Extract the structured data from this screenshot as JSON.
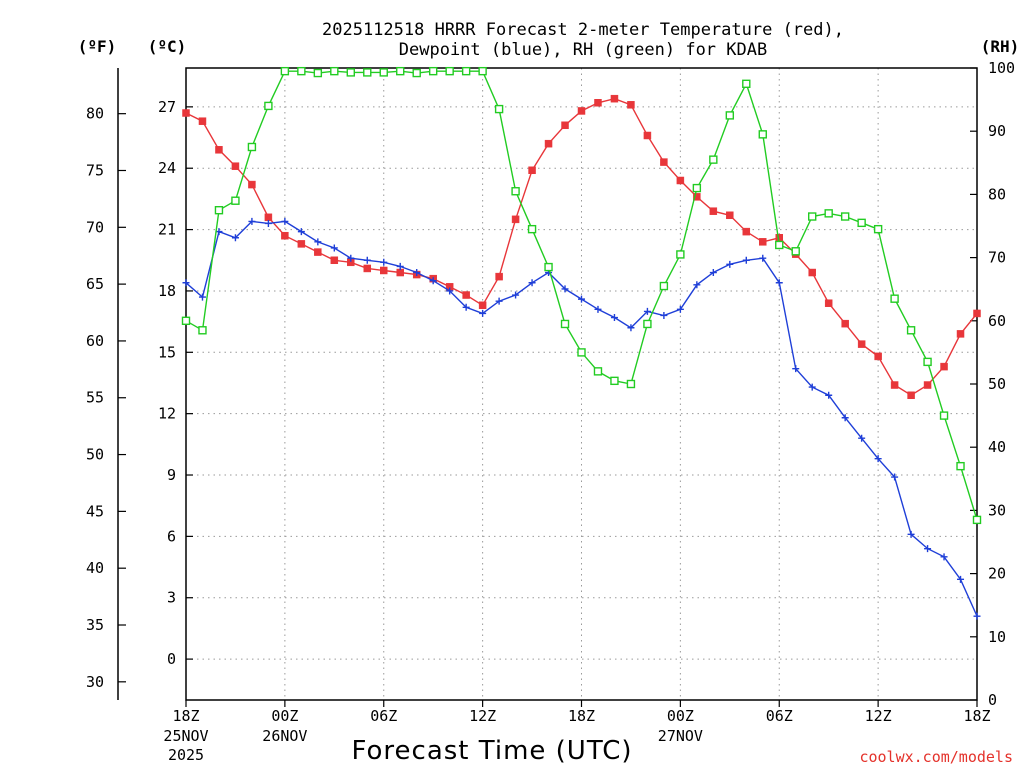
{
  "title": {
    "line1": "2025112518 HRRR Forecast 2-meter Temperature (red),",
    "line2": "Dewpoint (blue), RH (green) for KDAB"
  },
  "axes": {
    "f_unit": "(ºF)",
    "c_unit": "(ºC)",
    "rh_unit": "(RH)",
    "f_ticks": [
      "80",
      "75",
      "70",
      "65",
      "60",
      "55",
      "50",
      "45",
      "40",
      "35",
      "30"
    ],
    "c_ticks": [
      "27",
      "24",
      "21",
      "18",
      "15",
      "12",
      "9",
      "6",
      "3",
      "0"
    ],
    "rh_ticks": [
      "100",
      "90",
      "80",
      "70",
      "60",
      "50",
      "40",
      "30",
      "20",
      "10",
      "0"
    ],
    "x_ticks": [
      {
        "label": "18Z",
        "sub1": "25NOV",
        "sub2": "2025",
        "hour": 0
      },
      {
        "label": "00Z",
        "sub1": "26NOV",
        "sub2": "",
        "hour": 6
      },
      {
        "label": "06Z",
        "sub1": "",
        "sub2": "",
        "hour": 12
      },
      {
        "label": "12Z",
        "sub1": "",
        "sub2": "",
        "hour": 18
      },
      {
        "label": "18Z",
        "sub1": "",
        "sub2": "",
        "hour": 24
      },
      {
        "label": "00Z",
        "sub1": "27NOV",
        "sub2": "",
        "hour": 30
      },
      {
        "label": "06Z",
        "sub1": "",
        "sub2": "",
        "hour": 36
      },
      {
        "label": "12Z",
        "sub1": "",
        "sub2": "",
        "hour": 42
      },
      {
        "label": "18Z",
        "sub1": "",
        "sub2": "",
        "hour": 48
      }
    ]
  },
  "xlabel": "Forecast Time (UTC)",
  "credit": "coolwx.com/models",
  "colors": {
    "temperature": "#e8363a",
    "dewpoint": "#1f3fd8",
    "rh": "#22cc22",
    "grid": "#9a9a9a"
  },
  "chart_data": {
    "type": "line",
    "title": "2025112518 HRRR Forecast 2-meter Temperature (red), Dewpoint (blue), RH (green) for KDAB",
    "xlabel": "Forecast Time (UTC)",
    "x_hours": [
      0,
      1,
      2,
      3,
      4,
      5,
      6,
      7,
      8,
      9,
      10,
      11,
      12,
      13,
      14,
      15,
      16,
      17,
      18,
      19,
      20,
      21,
      22,
      23,
      24,
      25,
      26,
      27,
      28,
      29,
      30,
      31,
      32,
      33,
      34,
      35,
      36,
      37,
      38,
      39,
      40,
      41,
      42,
      43,
      44,
      45,
      46,
      47,
      48
    ],
    "celsius_range": [
      -2,
      28.9
    ],
    "rh_range": [
      0,
      100
    ],
    "fahrenheit_range": [
      28.4,
      84
    ],
    "series": [
      {
        "name": "Temperature (red)",
        "units": "C",
        "marker": "filled-square",
        "values": [
          26.7,
          26.3,
          24.9,
          24.1,
          23.2,
          21.6,
          20.7,
          20.3,
          19.9,
          19.5,
          19.4,
          19.1,
          19.0,
          18.9,
          18.8,
          18.6,
          18.2,
          17.8,
          17.3,
          18.7,
          21.5,
          23.9,
          25.2,
          26.1,
          26.8,
          27.2,
          27.4,
          27.1,
          25.6,
          24.3,
          23.4,
          22.6,
          21.9,
          21.7,
          20.9,
          20.4,
          20.6,
          19.8,
          18.9,
          17.4,
          16.4,
          15.4,
          14.8,
          13.4,
          12.9,
          13.4,
          14.3,
          15.9,
          16.9
        ]
      },
      {
        "name": "Dewpoint (blue)",
        "units": "C",
        "marker": "plus",
        "values": [
          18.4,
          17.7,
          20.9,
          20.6,
          21.4,
          21.3,
          21.4,
          20.9,
          20.4,
          20.1,
          19.6,
          19.5,
          19.4,
          19.2,
          18.9,
          18.5,
          18.0,
          17.2,
          16.9,
          17.5,
          17.8,
          18.4,
          18.9,
          18.1,
          17.6,
          17.1,
          16.7,
          16.2,
          17.0,
          16.8,
          17.1,
          18.3,
          18.9,
          19.3,
          19.5,
          19.6,
          18.4,
          14.2,
          13.3,
          12.9,
          11.8,
          10.8,
          9.8,
          8.9,
          6.1,
          5.4,
          5.0,
          3.9,
          2.1
        ]
      },
      {
        "name": "RH (green)",
        "units": "%",
        "marker": "open-square",
        "values": [
          60.0,
          58.5,
          77.5,
          79.0,
          87.5,
          94.0,
          99.5,
          99.5,
          99.2,
          99.5,
          99.3,
          99.3,
          99.3,
          99.5,
          99.2,
          99.5,
          99.5,
          99.5,
          99.5,
          93.5,
          80.5,
          74.5,
          68.5,
          59.5,
          55.0,
          52.0,
          50.5,
          50.0,
          59.5,
          65.5,
          70.5,
          81.0,
          85.5,
          92.5,
          97.5,
          89.5,
          72.0,
          71.0,
          76.5,
          77.0,
          76.5,
          75.5,
          74.5,
          63.5,
          58.5,
          53.5,
          45.0,
          37.0,
          28.5
        ]
      }
    ]
  }
}
